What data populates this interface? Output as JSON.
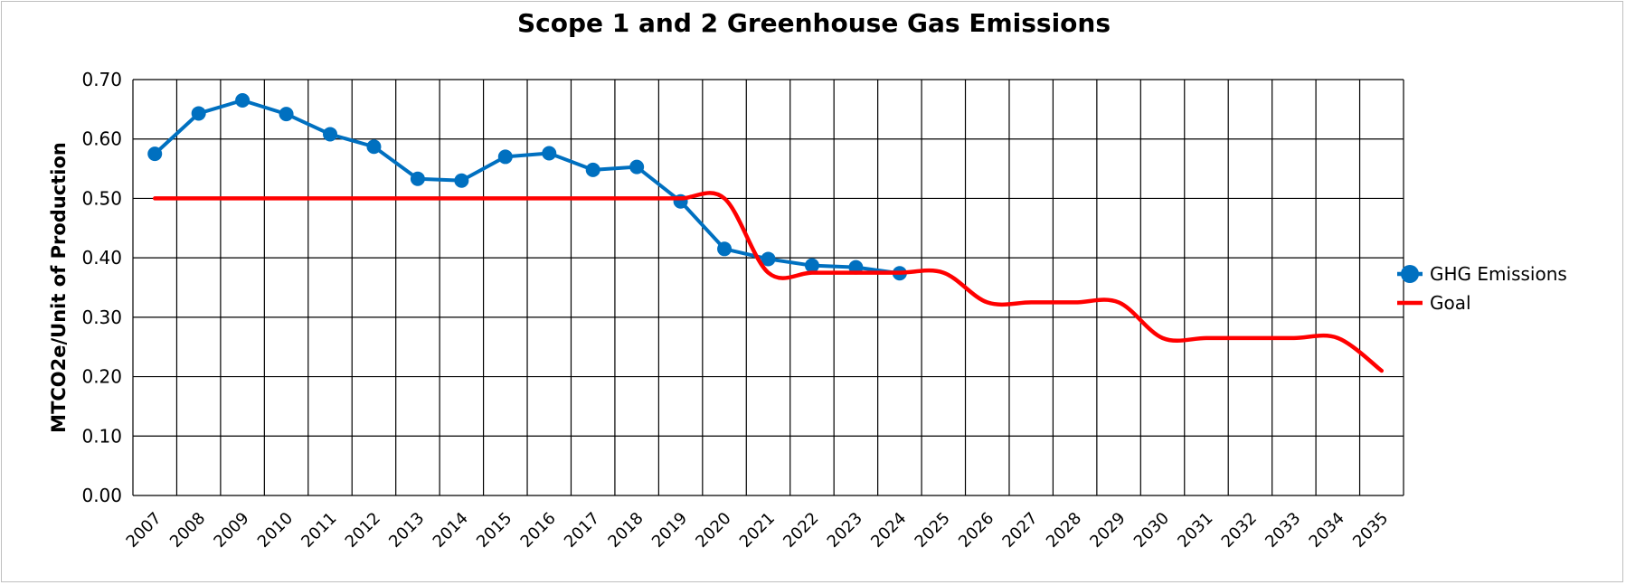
{
  "chart_data": {
    "type": "line",
    "title": "Scope 1 and 2 Greenhouse Gas Emissions",
    "ylabel": "MTCO2e/Unit of Production",
    "xlabel": "",
    "ylim": [
      0,
      0.7
    ],
    "yticks": [
      "0.00",
      "0.10",
      "0.20",
      "0.30",
      "0.40",
      "0.50",
      "0.60",
      "0.70"
    ],
    "categories": [
      "2007",
      "2008",
      "2009",
      "2010",
      "2011",
      "2012",
      "2013",
      "2014",
      "2015",
      "2016",
      "2017",
      "2018",
      "2019",
      "2020",
      "2021",
      "2022",
      "2023",
      "2024",
      "2025",
      "2026",
      "2027",
      "2028",
      "2029",
      "2030",
      "2031",
      "2032",
      "2033",
      "2034",
      "2035"
    ],
    "grid": true,
    "legend_position": "right",
    "series": [
      {
        "name": "GHG Emissions",
        "color": "#0070c0",
        "marker": "circle",
        "values": [
          0.575,
          0.643,
          0.665,
          0.642,
          0.608,
          0.587,
          0.533,
          0.53,
          0.57,
          0.576,
          0.548,
          0.553,
          0.495,
          0.415,
          0.398,
          0.387,
          0.384,
          0.374,
          null,
          null,
          null,
          null,
          null,
          null,
          null,
          null,
          null,
          null,
          null
        ]
      },
      {
        "name": "Goal",
        "color": "#ff0000",
        "marker": "none",
        "smooth": true,
        "values": [
          0.5,
          0.5,
          0.5,
          0.5,
          0.5,
          0.5,
          0.5,
          0.5,
          0.5,
          0.5,
          0.5,
          0.5,
          0.5,
          0.5,
          0.375,
          0.375,
          0.375,
          0.375,
          0.375,
          0.325,
          0.325,
          0.325,
          0.325,
          0.265,
          0.265,
          0.265,
          0.265,
          0.265,
          0.21
        ]
      }
    ]
  }
}
